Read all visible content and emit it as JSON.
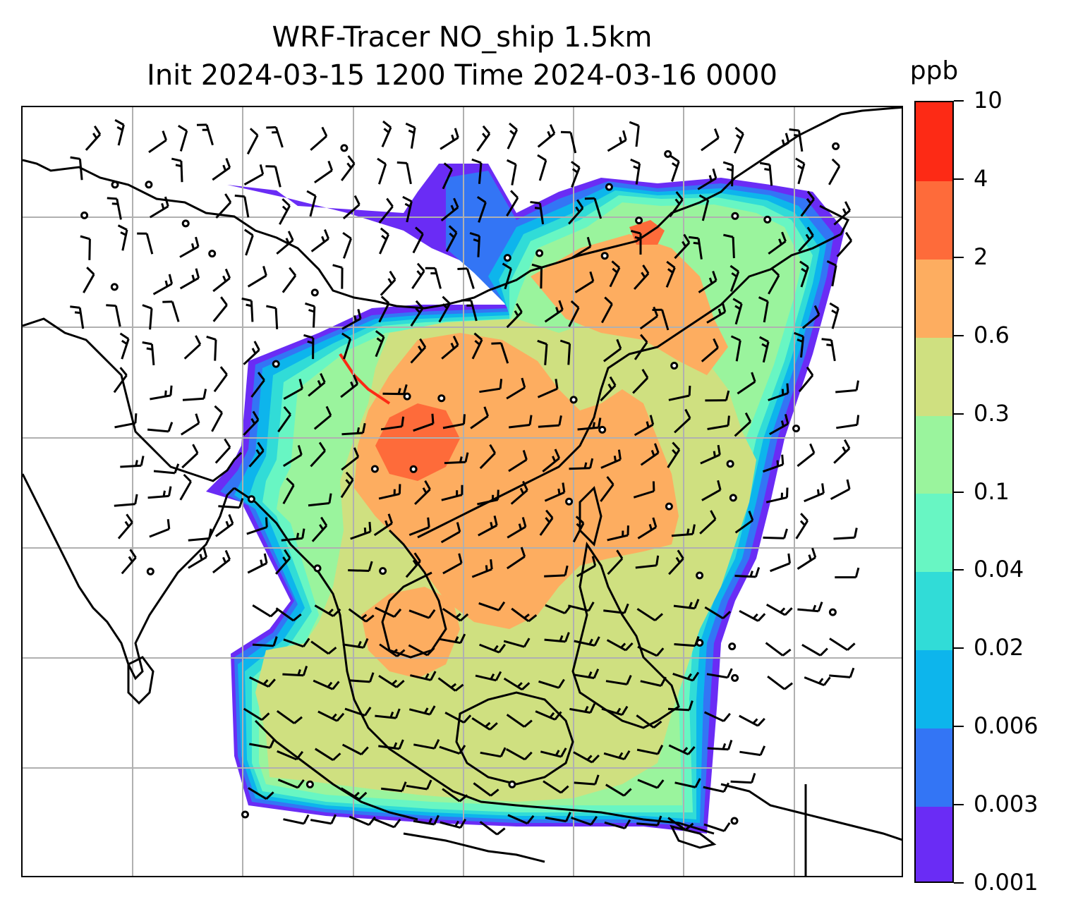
{
  "title_line1": "WRF-Tracer NO_ship 1.5km",
  "title_line2": "Init 2024-03-15 1200 Time 2024-03-16 0000",
  "colorbar": {
    "unit": "ppb",
    "ticks": [
      "0.001",
      "0.003",
      "0.006",
      "0.02",
      "0.04",
      "0.1",
      "0.3",
      "0.6",
      "2",
      "4",
      "10"
    ],
    "colors": [
      "#6a2cf5",
      "#3375f5",
      "#0db5ec",
      "#31dcd7",
      "#68f6c3",
      "#9af49d",
      "#cfe080",
      "#fdad60",
      "#fe6b3a",
      "#fd2a15"
    ]
  },
  "map": {
    "field": "NO_ship",
    "gridlines": true,
    "coastlines": true,
    "wind_barbs": true
  }
}
